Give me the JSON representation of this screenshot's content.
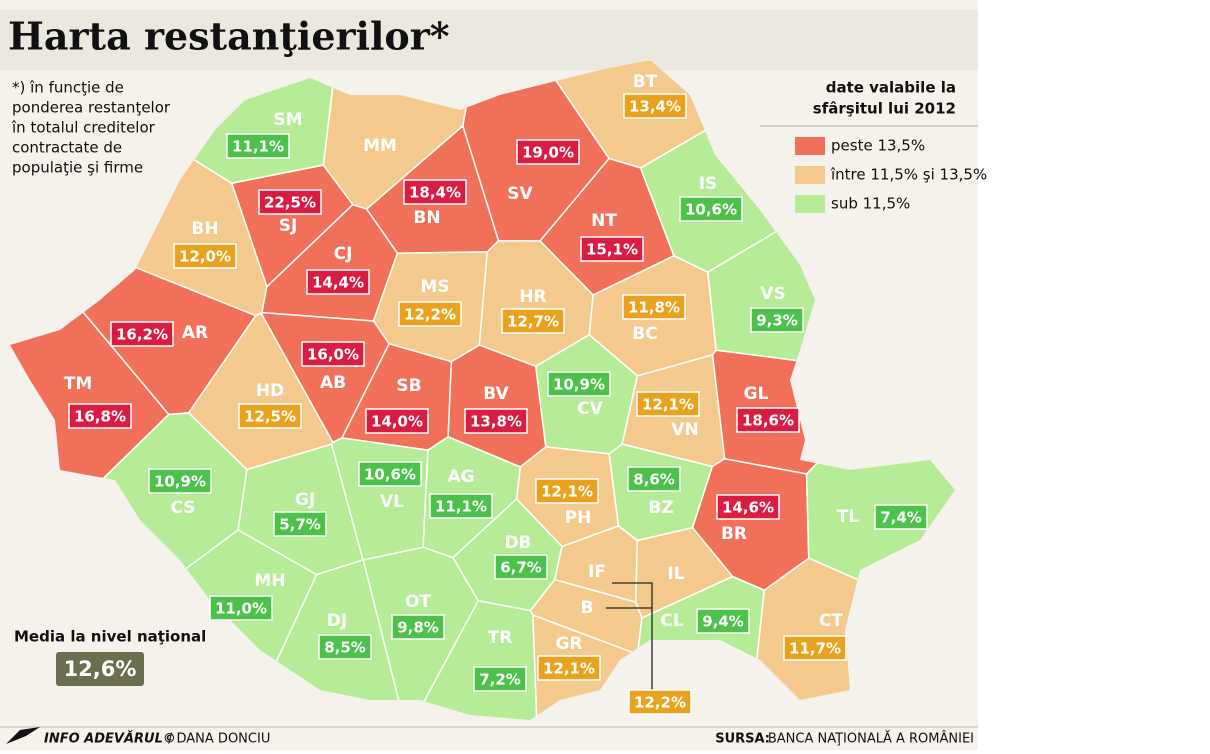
{
  "header": {
    "title": "Harta restanţierilor*"
  },
  "note": [
    "*) în funcţie de",
    "ponderea restanţelor",
    "în totalul creditelor",
    "contractate de",
    "populaţie şi firme"
  ],
  "legend": {
    "title": [
      "date valabile la",
      "sfârşitul lui 2012"
    ],
    "items": [
      {
        "label": "peste 13,5%",
        "color": "#f0705a"
      },
      {
        "label": "între 11,5% şi 13,5%",
        "color": "#f4c98d"
      },
      {
        "label": "sub 11,5%",
        "color": "#b6ec98"
      }
    ]
  },
  "national": {
    "label": "Media la nivel naţional",
    "value": "12,6%"
  },
  "counties": [
    {
      "code": "SM",
      "value": 11.1,
      "value_label": "11,1%",
      "color": "#b6ec98",
      "box_color": "#4cc24a"
    },
    {
      "code": "MM",
      "value": null,
      "value_label": null,
      "color": "#f4c98d",
      "box_color": null
    },
    {
      "code": "BT",
      "value": 13.4,
      "value_label": "13,4%",
      "color": "#f4c98d",
      "box_color": "#e9a21e"
    },
    {
      "code": "SJ",
      "value": 22.5,
      "value_label": "22,5%",
      "color": "#f0705a",
      "box_color": "#d81c42"
    },
    {
      "code": "BN",
      "value": 18.4,
      "value_label": "18,4%",
      "color": "#f0705a",
      "box_color": "#d81c42"
    },
    {
      "code": "SV",
      "value": 19.0,
      "value_label": "19,0%",
      "color": "#f0705a",
      "box_color": "#d81c42"
    },
    {
      "code": "BH",
      "value": 12.0,
      "value_label": "12,0%",
      "color": "#f4c98d",
      "box_color": "#e9a21e"
    },
    {
      "code": "CJ",
      "value": 14.4,
      "value_label": "14,4%",
      "color": "#f0705a",
      "box_color": "#d81c42"
    },
    {
      "code": "NT",
      "value": 15.1,
      "value_label": "15,1%",
      "color": "#f0705a",
      "box_color": "#d81c42"
    },
    {
      "code": "IS",
      "value": 10.6,
      "value_label": "10,6%",
      "color": "#b6ec98",
      "box_color": "#4cc24a"
    },
    {
      "code": "MS",
      "value": 12.2,
      "value_label": "12,2%",
      "color": "#f4c98d",
      "box_color": "#e9a21e"
    },
    {
      "code": "HR",
      "value": 12.7,
      "value_label": "12,7%",
      "color": "#f4c98d",
      "box_color": "#e9a21e"
    },
    {
      "code": "BC",
      "value": 11.8,
      "value_label": "11,8%",
      "color": "#f4c98d",
      "box_color": "#e9a21e"
    },
    {
      "code": "VS",
      "value": 9.3,
      "value_label": "9,3%",
      "color": "#b6ec98",
      "box_color": "#4cc24a"
    },
    {
      "code": "AR",
      "value": 16.2,
      "value_label": "16,2%",
      "color": "#f0705a",
      "box_color": "#d81c42"
    },
    {
      "code": "TM",
      "value": 16.8,
      "value_label": "16,8%",
      "color": "#f0705a",
      "box_color": "#d81c42"
    },
    {
      "code": "AB",
      "value": 16.0,
      "value_label": "16,0%",
      "color": "#f0705a",
      "box_color": "#d81c42"
    },
    {
      "code": "HD",
      "value": 12.5,
      "value_label": "12,5%",
      "color": "#f4c98d",
      "box_color": "#e9a21e"
    },
    {
      "code": "SB",
      "value": 14.0,
      "value_label": "14,0%",
      "color": "#f0705a",
      "box_color": "#d81c42"
    },
    {
      "code": "BV",
      "value": 13.8,
      "value_label": "13,8%",
      "color": "#f0705a",
      "box_color": "#d81c42"
    },
    {
      "code": "CV",
      "value": 10.9,
      "value_label": "10,9%",
      "color": "#b6ec98",
      "box_color": "#4cc24a"
    },
    {
      "code": "VN",
      "value": 12.1,
      "value_label": "12,1%",
      "color": "#f4c98d",
      "box_color": "#e9a21e"
    },
    {
      "code": "GL",
      "value": 18.6,
      "value_label": "18,6%",
      "color": "#f0705a",
      "box_color": "#d81c42"
    },
    {
      "code": "CS",
      "value": 10.9,
      "value_label": "10,9%",
      "color": "#b6ec98",
      "box_color": "#4cc24a"
    },
    {
      "code": "GJ",
      "value": 5.7,
      "value_label": "5,7%",
      "color": "#b6ec98",
      "box_color": "#4cc24a"
    },
    {
      "code": "VL",
      "value": 10.6,
      "value_label": "10,6%",
      "color": "#b6ec98",
      "box_color": "#4cc24a"
    },
    {
      "code": "AG",
      "value": 11.1,
      "value_label": "11,1%",
      "color": "#b6ec98",
      "box_color": "#4cc24a"
    },
    {
      "code": "PH",
      "value": 12.1,
      "value_label": "12,1%",
      "color": "#f4c98d",
      "box_color": "#e9a21e"
    },
    {
      "code": "BZ",
      "value": 8.6,
      "value_label": "8,6%",
      "color": "#b6ec98",
      "box_color": "#4cc24a"
    },
    {
      "code": "BR",
      "value": 14.6,
      "value_label": "14,6%",
      "color": "#f0705a",
      "box_color": "#d81c42"
    },
    {
      "code": "TL",
      "value": 7.4,
      "value_label": "7,4%",
      "color": "#b6ec98",
      "box_color": "#4cc24a"
    },
    {
      "code": "DB",
      "value": 6.7,
      "value_label": "6,7%",
      "color": "#b6ec98",
      "box_color": "#4cc24a"
    },
    {
      "code": "MH",
      "value": 11.0,
      "value_label": "11,0%",
      "color": "#b6ec98",
      "box_color": "#4cc24a"
    },
    {
      "code": "IF",
      "value": null,
      "value_label": null,
      "color": "#f4c98d",
      "box_color": null
    },
    {
      "code": "IL",
      "value": null,
      "value_label": null,
      "color": "#f4c98d",
      "box_color": null
    },
    {
      "code": "B",
      "value": 12.2,
      "value_label": "12,2%",
      "color": "#f4c98d",
      "box_color": "#e9a21e"
    },
    {
      "code": "CL",
      "value": 9.4,
      "value_label": "9,4%",
      "color": "#b6ec98",
      "box_color": "#4cc24a"
    },
    {
      "code": "CT",
      "value": 11.7,
      "value_label": "11,7%",
      "color": "#f4c98d",
      "box_color": "#e9a21e"
    },
    {
      "code": "DJ",
      "value": 8.5,
      "value_label": "8,5%",
      "color": "#b6ec98",
      "box_color": "#4cc24a"
    },
    {
      "code": "OT",
      "value": 9.8,
      "value_label": "9,8%",
      "color": "#b6ec98",
      "box_color": "#4cc24a"
    },
    {
      "code": "TR",
      "value": 7.2,
      "value_label": "7,2%",
      "color": "#b6ec98",
      "box_color": "#4cc24a"
    },
    {
      "code": "GR",
      "value": 12.1,
      "value_label": "12,1%",
      "color": "#f4c98d",
      "box_color": "#e9a21e"
    }
  ],
  "footer": {
    "credit": "INFO ADEVĂRUL©",
    "author": "/ DANA DONCIU",
    "source_label": "SURSA:",
    "source": "BANCA NAŢIONALĂ A ROMÂNIEI"
  }
}
